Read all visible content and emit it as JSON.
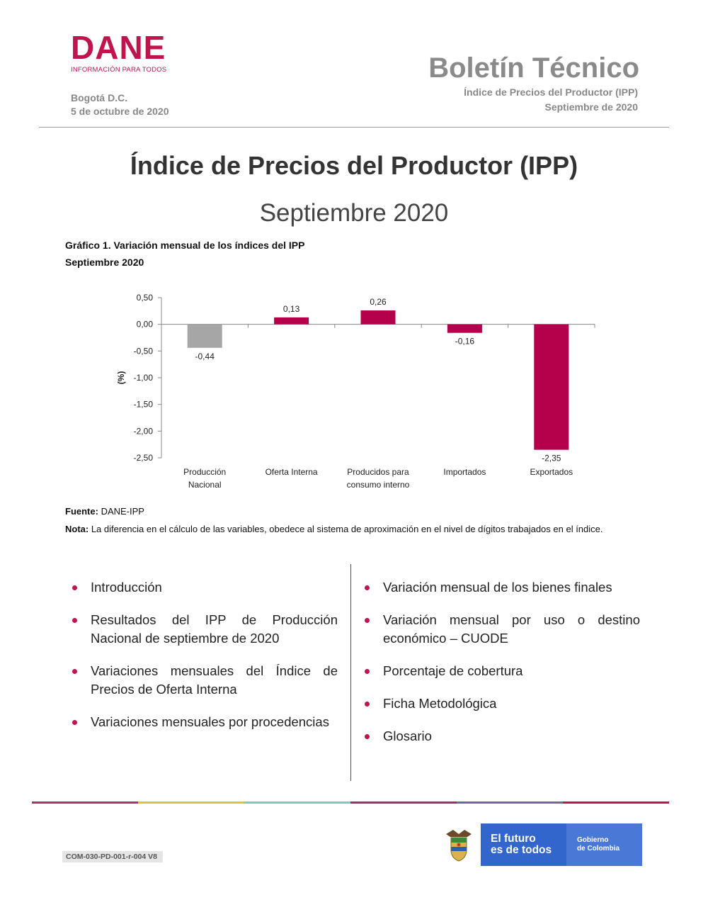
{
  "header": {
    "logo_text": "DANE",
    "logo_subtitle": "INFORMACIÓN PARA TODOS",
    "city": "Bogotá D.C.",
    "date": "5 de octubre de 2020",
    "bulletin_title": "Boletín Técnico",
    "bulletin_subtitle": "Índice de Precios del Productor (IPP)",
    "bulletin_period": "Septiembre de 2020"
  },
  "title": {
    "main": "Índice de Precios del Productor (IPP)",
    "period": "Septiembre 2020"
  },
  "chart_caption": {
    "line1": "Gráfico 1. Variación mensual de los índices del IPP",
    "line2": "Septiembre 2020"
  },
  "chart_data": {
    "type": "bar",
    "categories": [
      [
        "Producción",
        "Nacional"
      ],
      [
        "Oferta Interna"
      ],
      [
        "Producidos para",
        "consumo interno"
      ],
      [
        "Importados"
      ],
      [
        "Exportados"
      ]
    ],
    "values": [
      -0.44,
      0.13,
      0.26,
      -0.16,
      -2.35
    ],
    "value_labels": [
      "-0,44",
      "0,13",
      "0,26",
      "-0,16",
      "-2,35"
    ],
    "bar_colors": [
      "#a6a6a6",
      "#b5004b",
      "#b5004b",
      "#b5004b",
      "#b5004b"
    ],
    "ylabel": "(%)",
    "ylim": [
      -2.5,
      0.5
    ],
    "yticks": [
      0.5,
      0,
      -0.5,
      -1,
      -1.5,
      -2,
      -2.5
    ],
    "ytick_labels": [
      "0,50",
      "0,00",
      "-0,50",
      "-1,00",
      "-1,50",
      "-2,00",
      "-2,50"
    ],
    "grid": false,
    "legend": "none"
  },
  "source": {
    "source_label": "Fuente:",
    "source_text": " DANE-IPP",
    "note_label": "Nota:",
    "note_text": " La diferencia en el cálculo de las variables, obedece al sistema de aproximación en el nivel de dígitos trabajados en el índice."
  },
  "contents_left": [
    "Introducción",
    "Resultados del IPP de Producción Nacional de septiembre de 2020",
    "Variaciones mensuales del Índice de Precios de Oferta Interna",
    "Variaciones mensuales por procedencias"
  ],
  "contents_right": [
    "Variación mensual de los bienes finales",
    "Variación mensual por uso o destino económico – CUODE",
    "Porcentaje de cobertura",
    "Ficha Metodológica",
    "Glosario"
  ],
  "footer": {
    "doc_code": "COM-030-PD-001-r-004 V8",
    "slogan_line1": "El futuro",
    "slogan_line2": "es de todos",
    "gov_line1": "Gobierno",
    "gov_line2": "de Colombia",
    "stripe_colors": [
      "#b0306a",
      "#e0c33c",
      "#7cc9c0",
      "#9c2f6c",
      "#7a62a6",
      "#c0144c"
    ]
  }
}
